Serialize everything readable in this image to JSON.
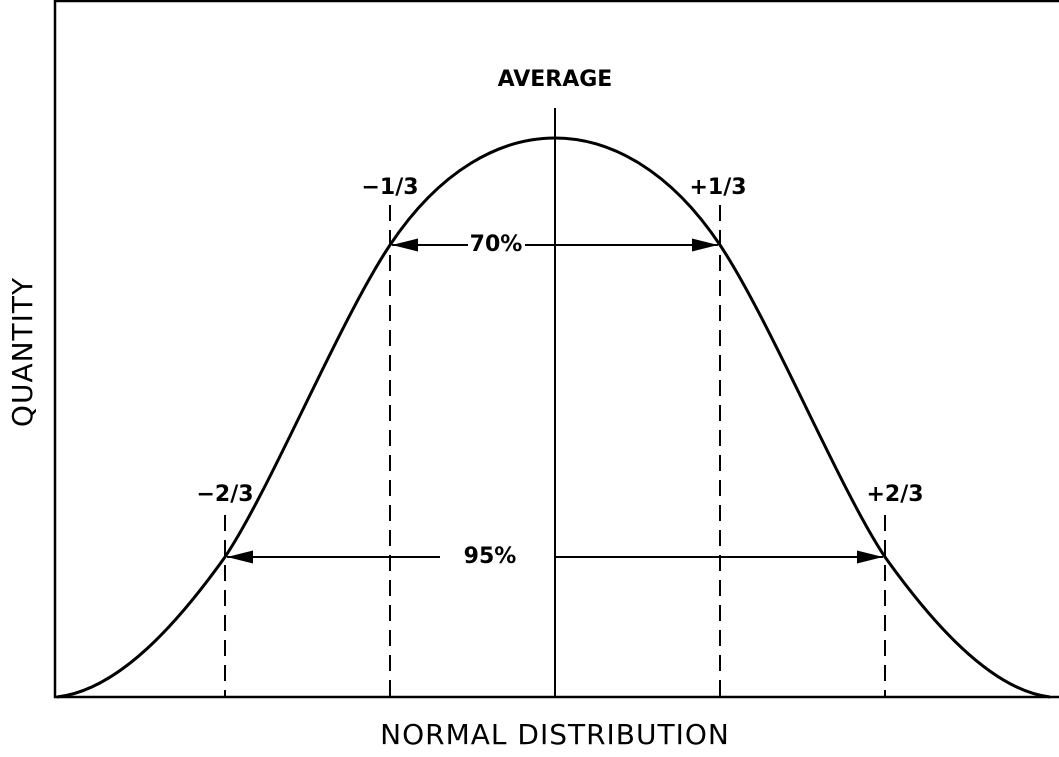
{
  "title": "NORMAL DISTRIBUTION",
  "y_axis_label": "QUANTITY",
  "center_label": "AVERAGE",
  "markers": [
    {
      "label": "−2/3"
    },
    {
      "label": "−1/3"
    },
    {
      "label": "+1/3"
    },
    {
      "label": "+2/3"
    }
  ],
  "ranges": [
    {
      "label": "70%"
    },
    {
      "label": "95%"
    }
  ]
}
